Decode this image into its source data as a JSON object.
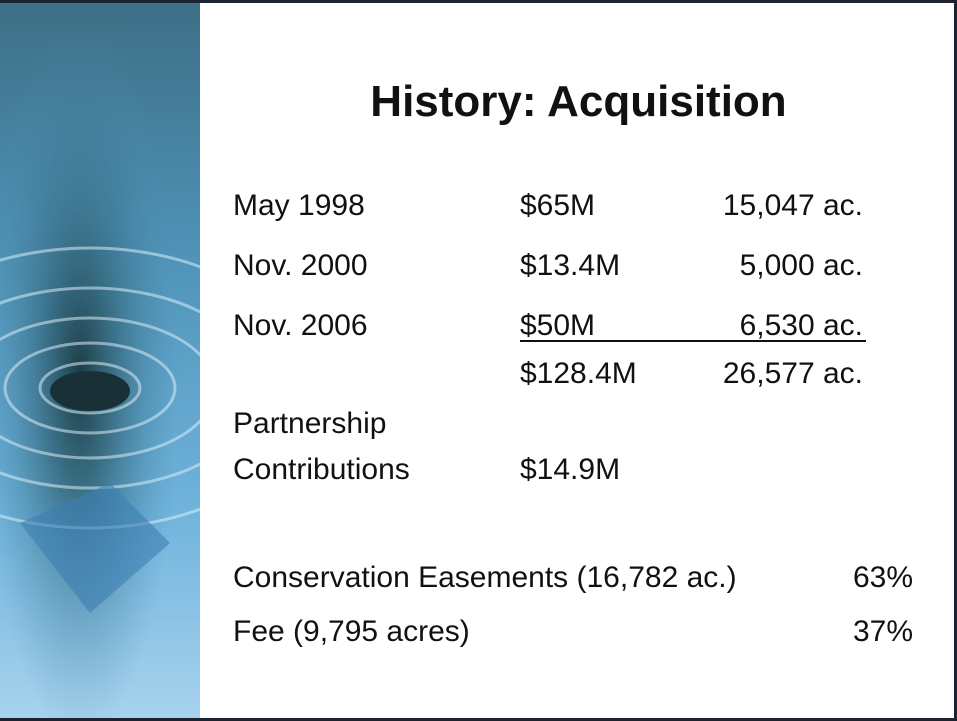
{
  "title": "History: Acquisition",
  "acquisitions": [
    {
      "date": "May 1998",
      "amount": "$65M",
      "acres": "15,047 ac."
    },
    {
      "date": "Nov. 2000",
      "amount": "$13.4M",
      "acres": "5,000 ac."
    },
    {
      "date": "Nov. 2006",
      "amount": "$50M",
      "acres": "6,530 ac."
    }
  ],
  "total": {
    "amount": "$128.4M",
    "acres": "26,577 ac."
  },
  "partnership": {
    "label": [
      "Partnership",
      "Contributions"
    ],
    "amount": "$14.9M"
  },
  "land": [
    {
      "label": "Conservation Easements (16,782 ac.)",
      "share": "63%"
    },
    {
      "label": "Fee (9,795 acres)",
      "share": "37%"
    }
  ]
}
